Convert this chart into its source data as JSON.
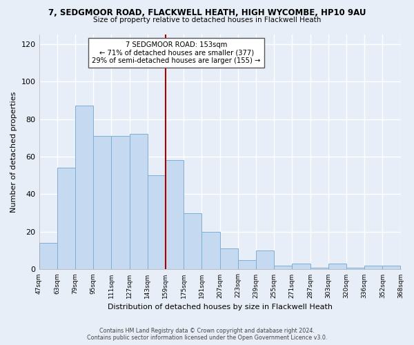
{
  "title": "7, SEDGMOOR ROAD, FLACKWELL HEATH, HIGH WYCOMBE, HP10 9AU",
  "subtitle": "Size of property relative to detached houses in Flackwell Heath",
  "xlabel": "Distribution of detached houses by size in Flackwell Heath",
  "ylabel": "Number of detached properties",
  "bar_labels": [
    "47sqm",
    "63sqm",
    "79sqm",
    "95sqm",
    "111sqm",
    "127sqm",
    "143sqm",
    "159sqm",
    "175sqm",
    "191sqm",
    "207sqm",
    "223sqm",
    "239sqm",
    "255sqm",
    "271sqm",
    "287sqm",
    "303sqm",
    "320sqm",
    "336sqm",
    "352sqm",
    "368sqm"
  ],
  "bar_values": [
    14,
    54,
    87,
    71,
    71,
    72,
    50,
    58,
    30,
    20,
    11,
    5,
    10,
    2,
    3,
    1,
    3,
    1,
    2,
    2
  ],
  "bar_color": "#c5d9f0",
  "bar_edge_color": "#7bafd4",
  "vline_color": "#aa0000",
  "annotation_title": "7 SEDGMOOR ROAD: 153sqm",
  "annotation_line1": "← 71% of detached houses are smaller (377)",
  "annotation_line2": "29% of semi-detached houses are larger (155) →",
  "annotation_box_color": "#ffffff",
  "annotation_box_edge": "#555555",
  "ylim": [
    0,
    125
  ],
  "yticks": [
    0,
    20,
    40,
    60,
    80,
    100,
    120
  ],
  "footer_line1": "Contains HM Land Registry data © Crown copyright and database right 2024.",
  "footer_line2": "Contains public sector information licensed under the Open Government Licence v3.0.",
  "background_color": "#e8eef8",
  "plot_bg_color": "#e8eef8",
  "grid_color": "#ffffff"
}
